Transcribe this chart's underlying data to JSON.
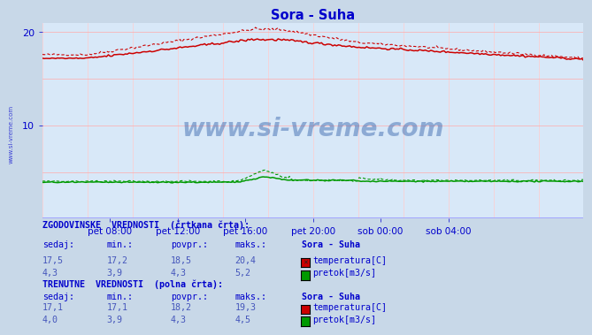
{
  "title": "Sora - Suha",
  "title_color": "#0000cc",
  "bg_color": "#d8e8f8",
  "outer_bg_color": "#c8d8e8",
  "ylabel_temp": "temperatura[C]",
  "ylabel_flow": "pretok[m3/s]",
  "ylim": [
    0,
    21
  ],
  "x_labels": [
    "pet 08:00",
    "pet 12:00",
    "pet 16:00",
    "pet 20:00",
    "sob 00:00",
    "sob 04:00"
  ],
  "watermark": "www.si-vreme.com",
  "watermark_color": "#3060aa",
  "color_temp": "#cc0000",
  "color_flow": "#009900",
  "color_axis_h": "#9999ff",
  "color_axis_v": "#0000cc",
  "color_grid_h": "#ffaaaa",
  "color_grid_v": "#ffcccc",
  "hist_temp_sedaj": 17.5,
  "hist_temp_min": 17.2,
  "hist_temp_povpr": 18.5,
  "hist_temp_maks": 20.4,
  "hist_flow_sedaj": 4.3,
  "hist_flow_min": 3.9,
  "hist_flow_povpr": 4.3,
  "hist_flow_maks": 5.2,
  "curr_temp_sedaj": 17.1,
  "curr_temp_min": 17.1,
  "curr_temp_povpr": 18.2,
  "curr_temp_maks": 19.3,
  "curr_flow_sedaj": 4.0,
  "curr_flow_min": 3.9,
  "curr_flow_povpr": 4.3,
  "curr_flow_maks": 4.5,
  "info_color": "#4455bb",
  "label_color": "#0000cc",
  "bold_label_color": "#0000cc"
}
